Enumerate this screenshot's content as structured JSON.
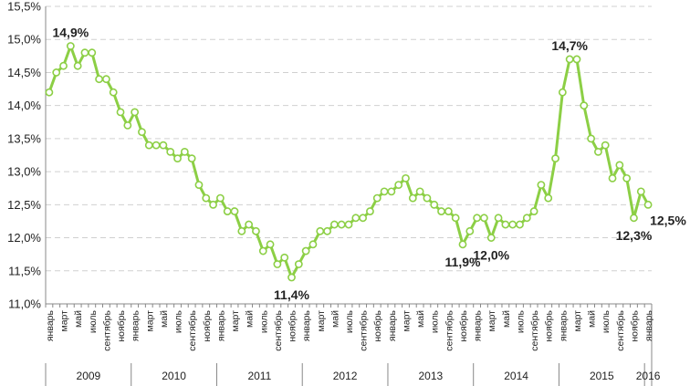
{
  "chart_data": {
    "type": "line",
    "title": "",
    "xlabel": "",
    "ylabel": "",
    "ylim": [
      11.0,
      15.5
    ],
    "yticks": [
      "11,0%",
      "11,5%",
      "12,0%",
      "12,5%",
      "13,0%",
      "13,5%",
      "14,0%",
      "14,5%",
      "15,0%",
      "15,5%"
    ],
    "grid": "horizontal dashed",
    "colors": {
      "line": "#8ccf45",
      "marker_fill": "#ffffff",
      "grid": "#d0d0d0",
      "axis": "#888888"
    },
    "x_labels": [
      "январь",
      "",
      "март",
      "",
      "май",
      "",
      "июль",
      "",
      "сентябрь",
      "",
      "ноябрь",
      "",
      "январь",
      "",
      "март",
      "",
      "май",
      "",
      "июль",
      "",
      "сентябрь",
      "",
      "ноябрь",
      "",
      "январь",
      "",
      "март",
      "",
      "май",
      "",
      "июль",
      "",
      "сентябрь",
      "",
      "ноябрь",
      "",
      "январь",
      "",
      "март",
      "",
      "май",
      "",
      "июль",
      "",
      "сентябрь",
      "",
      "ноябрь",
      "",
      "январь",
      "",
      "март",
      "",
      "май",
      "",
      "июль",
      "",
      "сентябрь",
      "",
      "ноябрь",
      "",
      "январь",
      "",
      "март",
      "",
      "май",
      "",
      "июль",
      "",
      "сентябрь",
      "",
      "ноябрь",
      "",
      "январь",
      "",
      "март",
      "",
      "май",
      "",
      "июль",
      "",
      "сентябрь",
      "",
      "ноябрь",
      "",
      "январь"
    ],
    "years": [
      {
        "label": "2009",
        "start": 0,
        "end": 11
      },
      {
        "label": "2010",
        "start": 12,
        "end": 23
      },
      {
        "label": "2011",
        "start": 24,
        "end": 35
      },
      {
        "label": "2012",
        "start": 36,
        "end": 47
      },
      {
        "label": "2013",
        "start": 48,
        "end": 59
      },
      {
        "label": "2014",
        "start": 60,
        "end": 71
      },
      {
        "label": "2015",
        "start": 72,
        "end": 83
      },
      {
        "label": "2016",
        "start": 84,
        "end": 84
      }
    ],
    "values": [
      14.2,
      14.5,
      14.6,
      14.9,
      14.6,
      14.8,
      14.8,
      14.4,
      14.4,
      14.2,
      13.9,
      13.7,
      13.9,
      13.6,
      13.4,
      13.4,
      13.4,
      13.3,
      13.2,
      13.3,
      13.2,
      12.8,
      12.6,
      12.5,
      12.6,
      12.4,
      12.4,
      12.1,
      12.2,
      12.1,
      11.8,
      11.9,
      11.6,
      11.7,
      11.4,
      11.6,
      11.8,
      11.9,
      12.1,
      12.1,
      12.2,
      12.2,
      12.2,
      12.3,
      12.3,
      12.4,
      12.6,
      12.7,
      12.7,
      12.8,
      12.9,
      12.6,
      12.7,
      12.6,
      12.5,
      12.4,
      12.4,
      12.3,
      11.9,
      12.1,
      12.3,
      12.3,
      12.0,
      12.3,
      12.2,
      12.2,
      12.2,
      12.3,
      12.4,
      12.8,
      12.6,
      13.2,
      14.2,
      14.7,
      14.7,
      14.0,
      13.5,
      13.3,
      13.4,
      12.9,
      13.1,
      12.9,
      12.3,
      12.7,
      12.5
    ],
    "annotations": [
      {
        "index": 3,
        "text": "14,9%",
        "pos": "above"
      },
      {
        "index": 34,
        "text": "11,4%",
        "pos": "below"
      },
      {
        "index": 58,
        "text": "11,9%",
        "pos": "below"
      },
      {
        "index": 62,
        "text": "12,0%",
        "pos": "below"
      },
      {
        "index": 73,
        "text": "14,7%",
        "pos": "above"
      },
      {
        "index": 82,
        "text": "12,3%",
        "pos": "below"
      },
      {
        "index": 84,
        "text": "12,5%",
        "pos": "right"
      }
    ]
  }
}
